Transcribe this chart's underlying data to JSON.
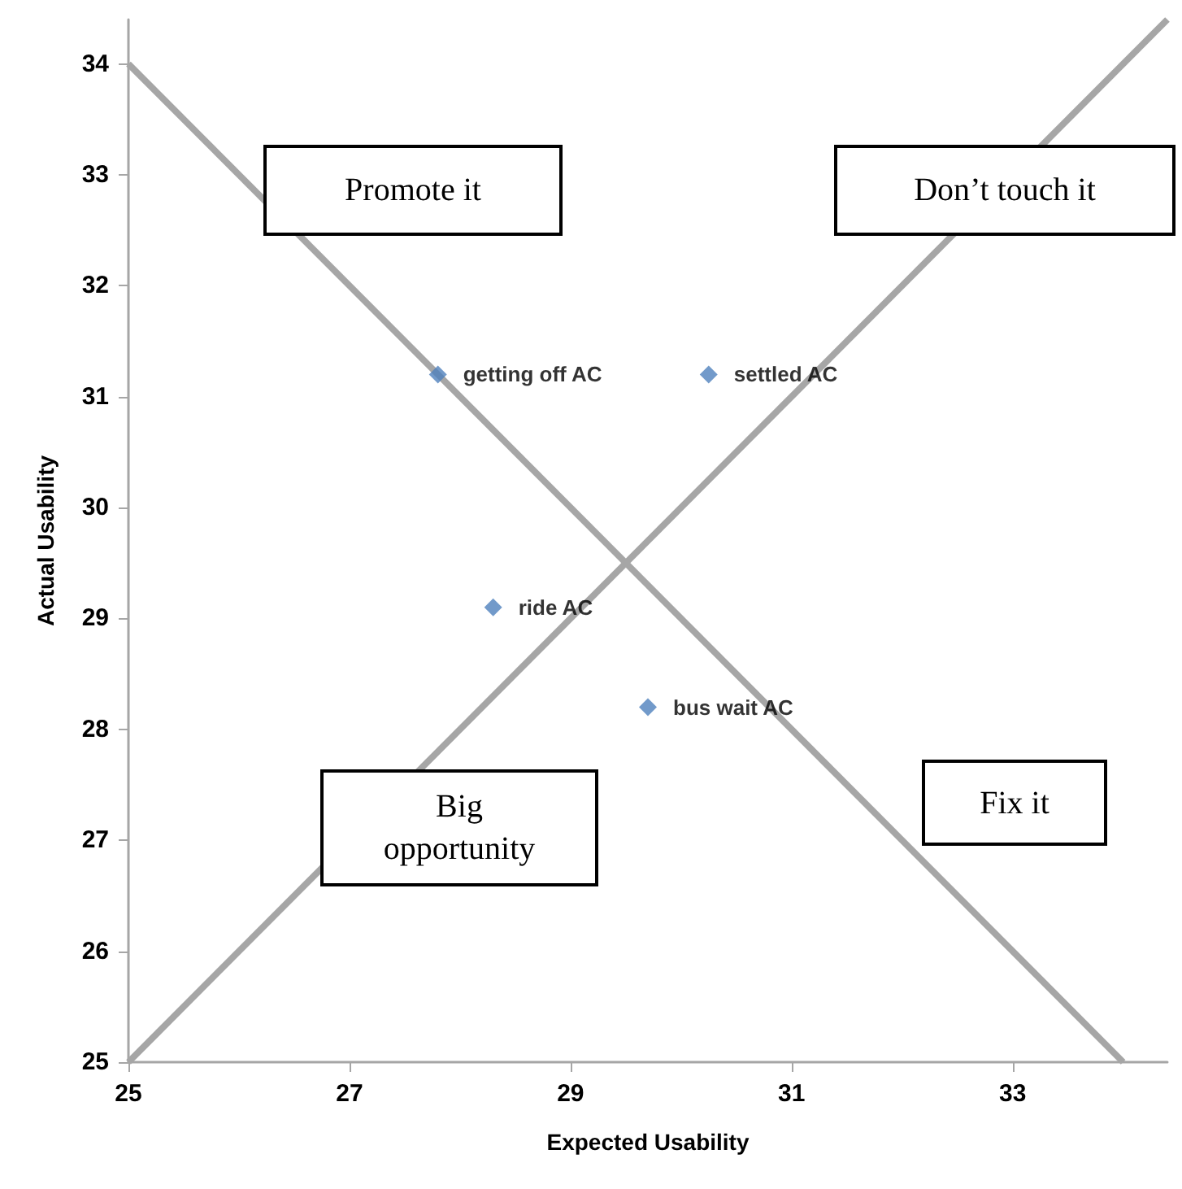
{
  "chart_data": {
    "type": "scatter",
    "xlabel": "Expected Usability",
    "ylabel": "Actual Usability",
    "xlim": [
      25,
      34.4
    ],
    "ylim": [
      25,
      34.4
    ],
    "xticks": [
      25,
      27,
      29,
      31,
      33
    ],
    "yticks": [
      25,
      26,
      27,
      28,
      29,
      30,
      31,
      32,
      33,
      34
    ],
    "grid": false,
    "legend": false,
    "marker": "diamond",
    "series": [
      {
        "name": "getting off AC",
        "color": "#4f81bd",
        "x": [
          27.8
        ],
        "values": [
          31.2
        ]
      },
      {
        "name": "settled AC",
        "color": "#4f81bd",
        "x": [
          30.25
        ],
        "values": [
          31.2
        ]
      },
      {
        "name": "ride AC",
        "color": "#4f81bd",
        "x": [
          28.3
        ],
        "values": [
          29.1
        ]
      },
      {
        "name": "bus wait AC",
        "color": "#4f81bd",
        "x": [
          29.7
        ],
        "values": [
          28.2
        ]
      },
      {
        "type": "line",
        "color": "#a6a6a6",
        "marker": "none",
        "x": [
          25,
          34.4
        ],
        "values": [
          25,
          34.4
        ]
      },
      {
        "type": "line",
        "color": "#a6a6a6",
        "marker": "none",
        "x": [
          25,
          34
        ],
        "values": [
          34,
          25
        ]
      }
    ],
    "annotations": [
      "Promote it",
      "Don’t touch it",
      "Big opportunity",
      "Fix it"
    ]
  }
}
